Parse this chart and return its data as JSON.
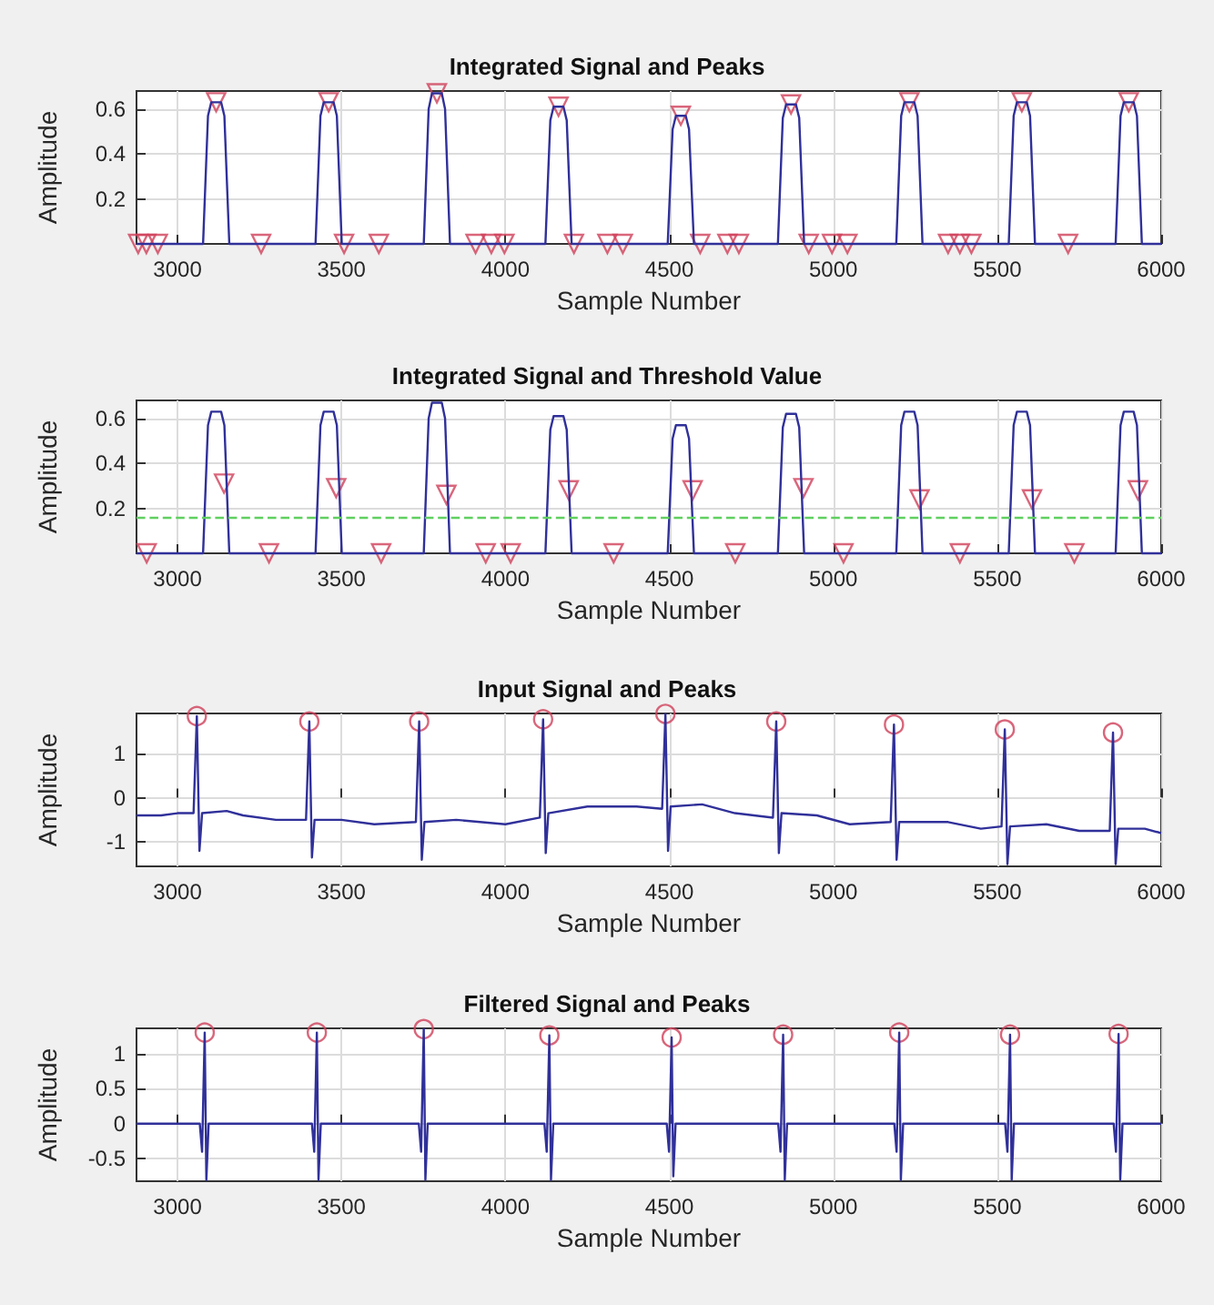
{
  "chart_data": [
    {
      "type": "line",
      "title": "Integrated Signal and Peaks",
      "xlabel": "Sample Number",
      "ylabel": "Amplitude",
      "xlim": [
        2875,
        6000
      ],
      "xticks": [
        3000,
        3500,
        4000,
        4500,
        5000,
        5500,
        6000
      ],
      "ylim": [
        0,
        0.68
      ],
      "yticks": [
        0.2,
        0.4,
        0.6
      ],
      "grid": true,
      "series": [
        {
          "type": "line",
          "color": "#30309a",
          "x": [
            2875,
            3078,
            3093,
            3103,
            3133,
            3143,
            3158,
            3421,
            3436,
            3446,
            3476,
            3486,
            3501,
            3751,
            3766,
            3776,
            3806,
            3816,
            3831,
            4122,
            4137,
            4147,
            4177,
            4187,
            4202,
            4495,
            4510,
            4520,
            4550,
            4560,
            4575,
            4831,
            4846,
            4856,
            4886,
            4896,
            4911,
            5192,
            5207,
            5217,
            5247,
            5257,
            5272,
            5535,
            5550,
            5560,
            5590,
            5600,
            5615,
            5861,
            5876,
            5886,
            5916,
            5926,
            5941,
            6000
          ],
          "values": [
            0,
            0,
            0.57,
            0.63,
            0.63,
            0.57,
            0,
            0,
            0.57,
            0.63,
            0.63,
            0.57,
            0,
            0,
            0.6,
            0.67,
            0.67,
            0.6,
            0,
            0,
            0.55,
            0.61,
            0.61,
            0.55,
            0,
            0,
            0.51,
            0.57,
            0.57,
            0.51,
            0,
            0,
            0.56,
            0.62,
            0.62,
            0.56,
            0,
            0,
            0.57,
            0.63,
            0.63,
            0.57,
            0,
            0,
            0.57,
            0.63,
            0.63,
            0.57,
            0,
            0,
            0.57,
            0.63,
            0.63,
            0.57,
            0,
            0
          ]
        },
        {
          "type": "scatter",
          "color": "#d0405a",
          "marker": "triangle",
          "x": [
            2880,
            2905,
            2940,
            3118,
            3255,
            3461,
            3508,
            3614,
            3791,
            3909,
            3957,
            3997,
            4162,
            4209,
            4311,
            4358,
            4535,
            4594,
            4677,
            4712,
            4871,
            4925,
            4996,
            5043,
            5232,
            5350,
            5386,
            5421,
            5575,
            5716,
            5901
          ],
          "values": [
            0,
            0,
            0,
            0.63,
            0,
            0.63,
            0,
            0,
            0.67,
            0,
            0,
            0,
            0.61,
            0,
            0,
            0,
            0.57,
            0,
            0,
            0,
            0.62,
            0,
            0,
            0,
            0.63,
            0,
            0,
            0,
            0.63,
            0,
            0.63
          ]
        }
      ]
    },
    {
      "type": "line",
      "title": "Integrated Signal and Threshold Value",
      "xlabel": "Sample Number",
      "ylabel": "Amplitude",
      "xlim": [
        2875,
        6000
      ],
      "xticks": [
        3000,
        3500,
        4000,
        4500,
        5000,
        5500,
        6000
      ],
      "ylim": [
        0,
        0.68
      ],
      "yticks": [
        0.2,
        0.4,
        0.6
      ],
      "grid": true,
      "ref_lines": [
        {
          "axis": "y",
          "value": 0.16,
          "color": "#60d060",
          "line_style": "dashed"
        }
      ],
      "series": [
        {
          "type": "line",
          "color": "#30309a",
          "x": [
            2875,
            3078,
            3093,
            3103,
            3133,
            3143,
            3158,
            3421,
            3436,
            3446,
            3476,
            3486,
            3501,
            3751,
            3766,
            3776,
            3806,
            3816,
            3831,
            4122,
            4137,
            4147,
            4177,
            4187,
            4202,
            4495,
            4510,
            4520,
            4550,
            4560,
            4575,
            4831,
            4846,
            4856,
            4886,
            4896,
            4911,
            5192,
            5207,
            5217,
            5247,
            5257,
            5272,
            5535,
            5550,
            5560,
            5590,
            5600,
            5615,
            5861,
            5876,
            5886,
            5916,
            5926,
            5941,
            6000
          ],
          "values": [
            0,
            0,
            0.57,
            0.63,
            0.63,
            0.57,
            0,
            0,
            0.57,
            0.63,
            0.63,
            0.57,
            0,
            0,
            0.6,
            0.67,
            0.67,
            0.6,
            0,
            0,
            0.55,
            0.61,
            0.61,
            0.55,
            0,
            0,
            0.51,
            0.57,
            0.57,
            0.51,
            0,
            0,
            0.56,
            0.62,
            0.62,
            0.56,
            0,
            0,
            0.57,
            0.63,
            0.63,
            0.57,
            0,
            0,
            0.57,
            0.63,
            0.63,
            0.57,
            0,
            0,
            0.57,
            0.63,
            0.63,
            0.57,
            0,
            0
          ]
        },
        {
          "type": "scatter",
          "color": "#d0405a",
          "marker": "triangle",
          "x": [
            2906,
            3142,
            3279,
            3484,
            3621,
            3820,
            3940,
            4016,
            4193,
            4330,
            4571,
            4701,
            4909,
            5031,
            5263,
            5386,
            5606,
            5735,
            5929
          ],
          "values": [
            0,
            0.31,
            0,
            0.29,
            0,
            0.26,
            0,
            0,
            0.28,
            0,
            0.28,
            0,
            0.29,
            0,
            0.24,
            0,
            0.24,
            0,
            0.28
          ]
        }
      ]
    },
    {
      "type": "line",
      "title": "Input Signal and Peaks",
      "xlabel": "Sample Number",
      "ylabel": "Amplitude",
      "xlim": [
        2875,
        6000
      ],
      "xticks": [
        3000,
        3500,
        4000,
        4500,
        5000,
        5500,
        6000
      ],
      "ylim": [
        -1.55,
        1.9
      ],
      "yticks": [
        -1,
        0,
        1
      ],
      "grid": true,
      "series": [
        {
          "type": "line",
          "color": "#30309a",
          "x": [
            2875,
            2950,
            3000,
            3049,
            3059,
            3067,
            3075,
            3150,
            3200,
            3300,
            3392,
            3402,
            3410,
            3418,
            3500,
            3600,
            3727,
            3737,
            3745,
            3753,
            3850,
            4000,
            4105,
            4115,
            4123,
            4131,
            4250,
            4400,
            4478,
            4488,
            4496,
            4504,
            4600,
            4700,
            4816,
            4826,
            4834,
            4842,
            4950,
            5050,
            5175,
            5185,
            5193,
            5201,
            5350,
            5450,
            5513,
            5523,
            5531,
            5539,
            5650,
            5750,
            5843,
            5853,
            5861,
            5869,
            5950,
            6000
          ],
          "values": [
            -0.4,
            -0.4,
            -0.35,
            -0.35,
            1.84,
            -1.2,
            -0.35,
            -0.3,
            -0.4,
            -0.5,
            -0.5,
            1.72,
            -1.35,
            -0.5,
            -0.5,
            -0.6,
            -0.55,
            1.72,
            -1.4,
            -0.55,
            -0.5,
            -0.6,
            -0.45,
            1.77,
            -1.25,
            -0.35,
            -0.2,
            -0.2,
            -0.25,
            1.89,
            -1.2,
            -0.2,
            -0.15,
            -0.35,
            -0.45,
            1.72,
            -1.25,
            -0.35,
            -0.4,
            -0.6,
            -0.55,
            1.65,
            -1.4,
            -0.55,
            -0.55,
            -0.7,
            -0.65,
            1.54,
            -1.5,
            -0.65,
            -0.6,
            -0.75,
            -0.75,
            1.47,
            -1.5,
            -0.7,
            -0.7,
            -0.8
          ]
        },
        {
          "type": "scatter",
          "color": "#d0405a",
          "marker": "circle",
          "x": [
            3059,
            3402,
            3737,
            4115,
            4488,
            4826,
            5185,
            5523,
            5853
          ],
          "values": [
            1.84,
            1.72,
            1.72,
            1.77,
            1.89,
            1.72,
            1.65,
            1.54,
            1.47
          ]
        }
      ]
    },
    {
      "type": "line",
      "title": "Filtered Signal and Peaks",
      "xlabel": "Sample Number",
      "ylabel": "Amplitude",
      "xlim": [
        2875,
        6000
      ],
      "xticks": [
        3000,
        3500,
        4000,
        4500,
        5000,
        5500,
        6000
      ],
      "ylim": [
        -0.82,
        1.36
      ],
      "yticks": [
        -0.5,
        0,
        0.5,
        1
      ],
      "grid": true,
      "series": [
        {
          "type": "line",
          "color": "#30309a",
          "x": [
            2875,
            3068,
            3075,
            3083,
            3088,
            3095,
            3410,
            3417,
            3425,
            3430,
            3437,
            3736,
            3743,
            3751,
            3756,
            3763,
            4119,
            4126,
            4134,
            4139,
            4146,
            4492,
            4499,
            4507,
            4512,
            4519,
            4832,
            4839,
            4847,
            4852,
            4859,
            5186,
            5193,
            5201,
            5206,
            5213,
            5524,
            5531,
            5539,
            5544,
            5551,
            5855,
            5862,
            5870,
            5875,
            5882,
            6000
          ],
          "values": [
            0,
            0,
            -0.4,
            1.3,
            -0.8,
            0,
            0,
            -0.4,
            1.3,
            -0.8,
            0,
            0,
            -0.4,
            1.35,
            -0.8,
            0,
            0,
            -0.4,
            1.26,
            -0.8,
            0,
            0,
            -0.4,
            1.23,
            -0.75,
            0,
            0,
            -0.4,
            1.27,
            -0.8,
            0,
            0,
            -0.4,
            1.3,
            -0.8,
            0,
            0,
            -0.4,
            1.27,
            -0.8,
            0,
            0,
            -0.4,
            1.28,
            -0.8,
            0,
            0
          ]
        },
        {
          "type": "scatter",
          "color": "#d0405a",
          "marker": "circle",
          "x": [
            3083,
            3425,
            3751,
            4134,
            4507,
            4847,
            5201,
            5539,
            5870
          ],
          "values": [
            1.3,
            1.3,
            1.35,
            1.26,
            1.23,
            1.27,
            1.3,
            1.27,
            1.28
          ]
        }
      ]
    }
  ]
}
